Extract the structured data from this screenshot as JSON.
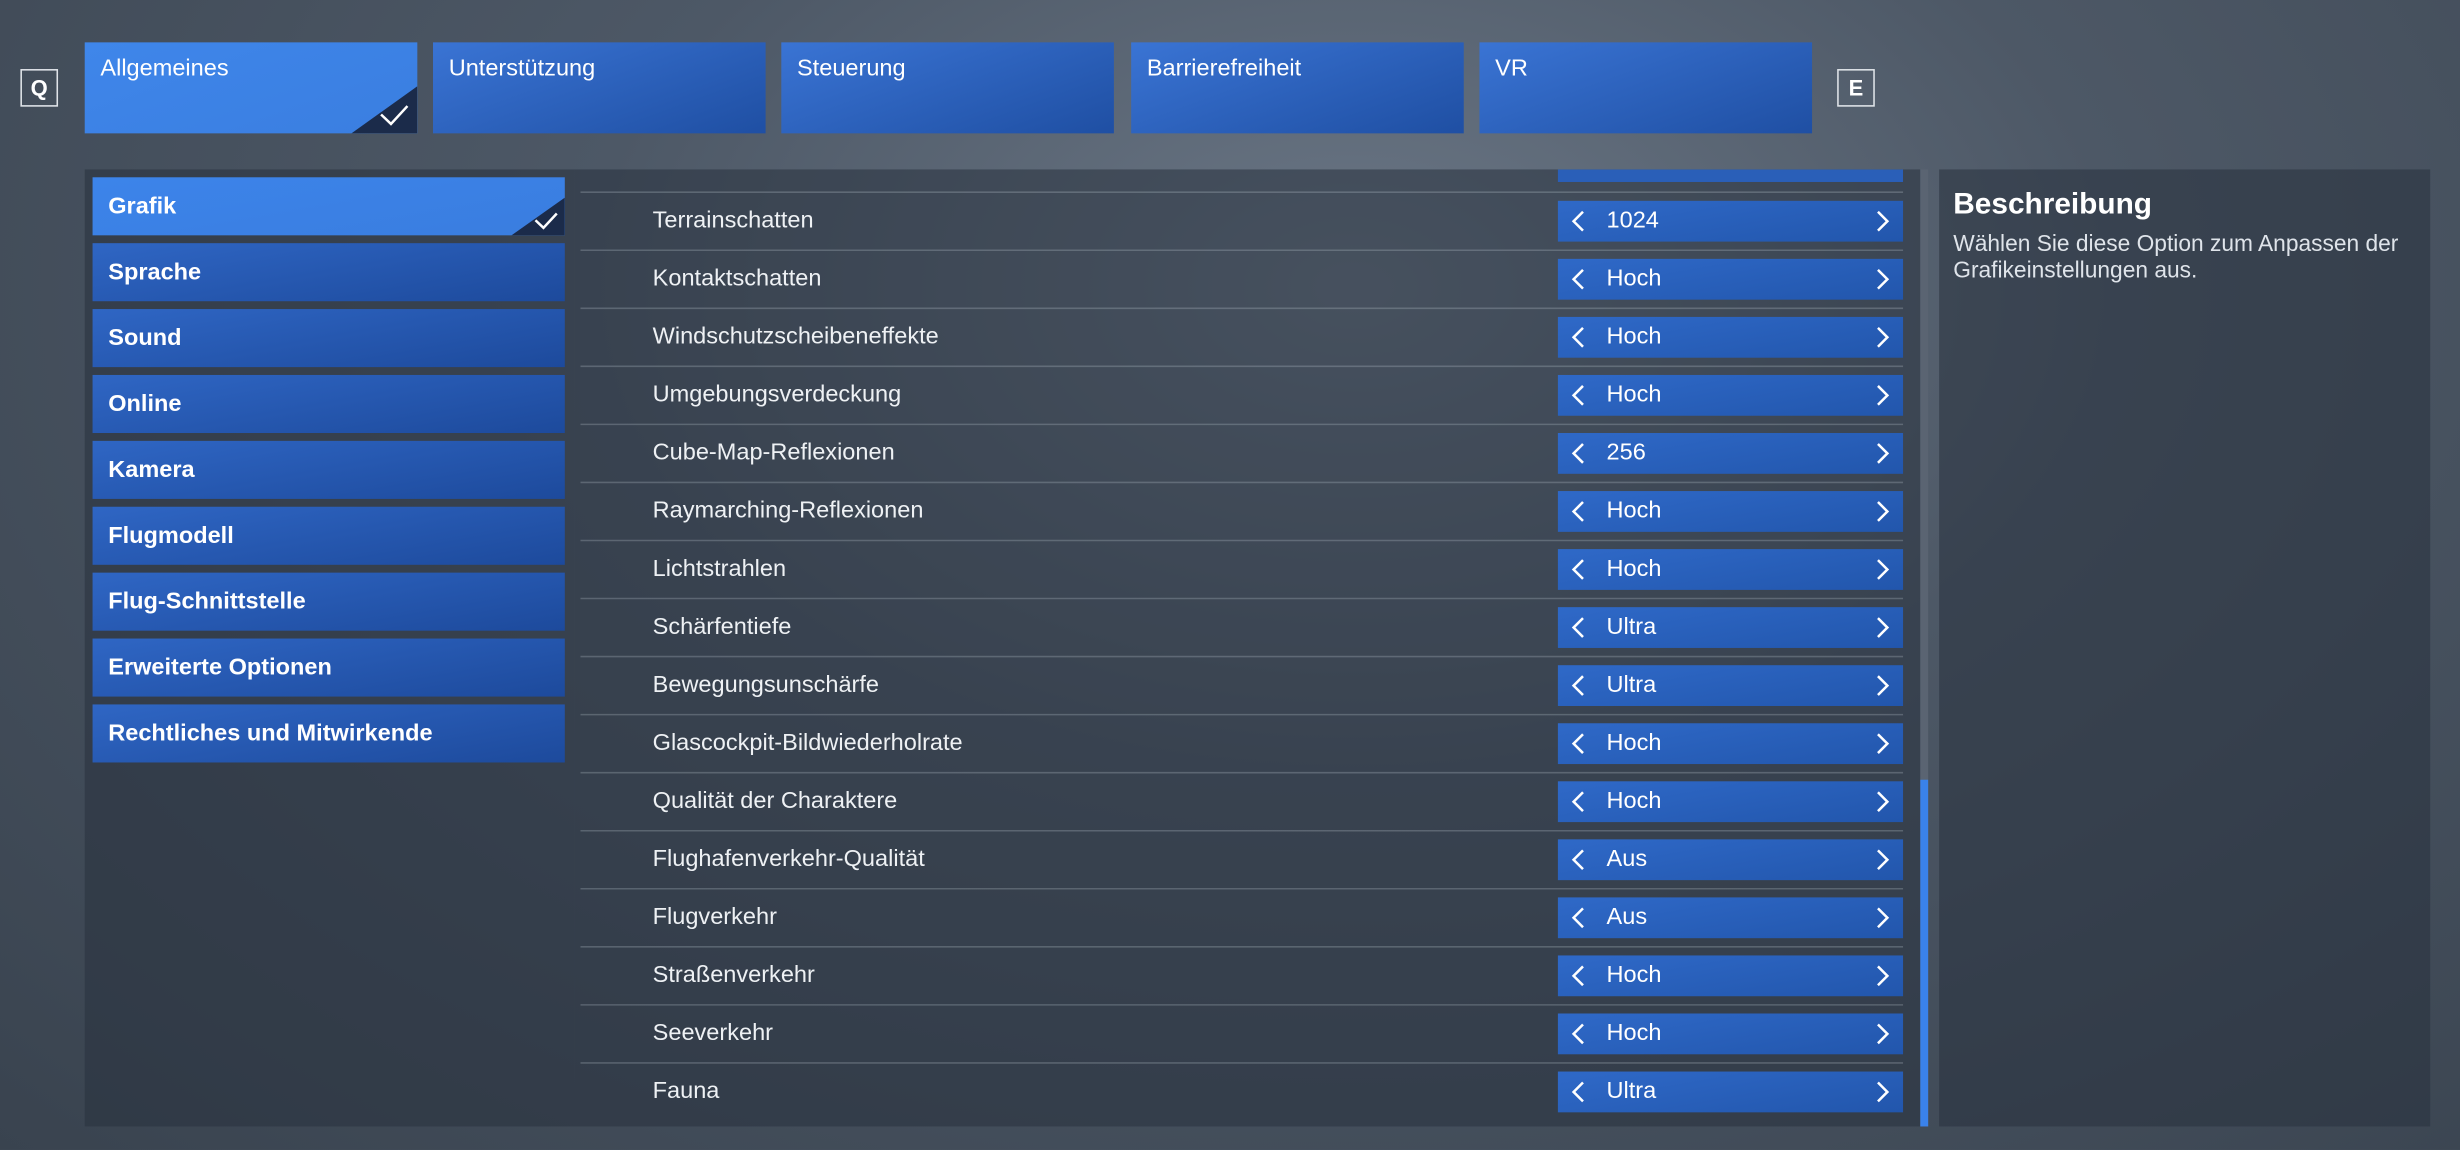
{
  "keys": {
    "prev": "Q",
    "next": "E"
  },
  "tabs": [
    "Allgemeines",
    "Unterstützung",
    "Steuerung",
    "Barrierefreiheit",
    "VR"
  ],
  "nav": [
    "Grafik",
    "Sprache",
    "Sound",
    "Online",
    "Kamera",
    "Flugmodell",
    "Flug-Schnittstelle",
    "Erweiterte Optionen",
    "Rechtliches und Mitwirkende"
  ],
  "settings": [
    {
      "label": "Terrainschatten",
      "value": "1024"
    },
    {
      "label": "Kontaktschatten",
      "value": "Hoch"
    },
    {
      "label": "Windschutzscheibeneffekte",
      "value": "Hoch"
    },
    {
      "label": "Umgebungsverdeckung",
      "value": "Hoch"
    },
    {
      "label": "Cube-Map-Reflexionen",
      "value": "256"
    },
    {
      "label": "Raymarching-Reflexionen",
      "value": "Hoch"
    },
    {
      "label": "Lichtstrahlen",
      "value": "Hoch"
    },
    {
      "label": "Schärfentiefe",
      "value": "Ultra"
    },
    {
      "label": "Bewegungsunschärfe",
      "value": "Ultra"
    },
    {
      "label": "Glascockpit-Bildwiederholrate",
      "value": "Hoch"
    },
    {
      "label": "Qualität der Charaktere",
      "value": "Hoch"
    },
    {
      "label": "Flughafenverkehr-Qualität",
      "value": "Aus"
    },
    {
      "label": "Flugverkehr",
      "value": "Aus"
    },
    {
      "label": "Straßenverkehr",
      "value": "Hoch"
    },
    {
      "label": "Seeverkehr",
      "value": "Hoch"
    },
    {
      "label": "Fauna",
      "value": "Ultra"
    }
  ],
  "description": {
    "title": "Beschreibung",
    "text": "Wählen Sie diese Option zum Anpassen der Grafikeinstellungen aus."
  }
}
